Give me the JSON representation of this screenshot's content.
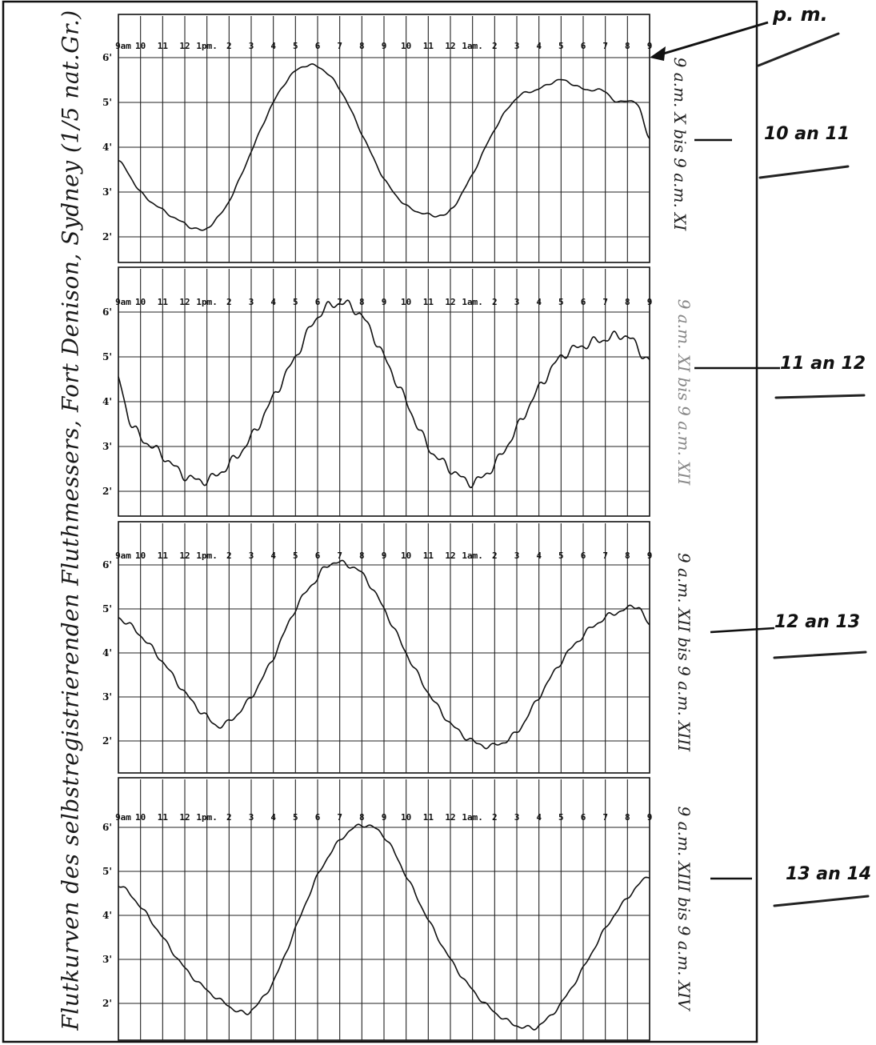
{
  "page": {
    "title": "Flutkurven des selbstregistrierenden Fluthmessers, Fort Denison, Sydney (1/5 nat.Gr.)",
    "pm_note": "p. m."
  },
  "chart_data": [
    {
      "type": "line",
      "range_label": "9 a.m. X bis 9 a.m. XI",
      "side_note": "10 an 11",
      "top_labels": [
        "9am",
        "10",
        "11",
        "12",
        "1pm.",
        "2",
        "3",
        "4",
        "5",
        "6",
        "7",
        "8",
        "9",
        "10",
        "11",
        "12",
        "1am.",
        "2",
        "3",
        "4",
        "5",
        "6",
        "7",
        "8",
        "9"
      ],
      "yticks": [
        "2'",
        "3'",
        "4'",
        "5'",
        "6'"
      ],
      "ylim": [
        1.5,
        6.2
      ],
      "xlim": [
        0,
        24
      ],
      "series": [
        {
          "x": [
            0,
            1,
            2,
            3,
            3.5,
            4,
            5,
            6,
            7,
            8,
            9,
            10,
            11,
            12,
            13,
            14,
            14.5,
            15,
            16,
            17,
            18,
            19,
            20,
            21,
            22,
            22.5,
            23,
            23.5,
            24
          ],
          "y": [
            3.7,
            3.0,
            2.6,
            2.3,
            2.18,
            2.2,
            2.8,
            3.9,
            5.0,
            5.7,
            5.8,
            5.3,
            4.3,
            3.3,
            2.7,
            2.5,
            2.48,
            2.6,
            3.4,
            4.4,
            5.1,
            5.3,
            5.5,
            5.3,
            5.25,
            5.0,
            5.05,
            4.9,
            4.2
          ]
        }
      ]
    },
    {
      "type": "line",
      "range_label": "9 a.m. XI bis 9 a.m. XII",
      "side_note": "11 an 12",
      "top_labels": [
        "9am",
        "10",
        "11",
        "12",
        "1pm.",
        "2",
        "3",
        "4",
        "5",
        "6",
        "7",
        "8",
        "9",
        "10",
        "11",
        "12",
        "1am.",
        "2",
        "3",
        "4",
        "5",
        "6",
        "7",
        "8",
        "9"
      ],
      "yticks": [
        "2'",
        "3'",
        "4'",
        "5'",
        "6'"
      ],
      "ylim": [
        1.5,
        6.4
      ],
      "xlim": [
        0,
        24
      ],
      "series": [
        {
          "x": [
            0,
            0.5,
            1,
            2,
            3,
            4,
            5,
            6,
            7,
            8,
            9,
            10,
            11,
            12,
            13,
            14,
            15,
            16,
            17,
            18,
            19,
            20,
            21,
            22,
            23,
            24
          ],
          "y": [
            4.5,
            3.6,
            3.2,
            2.8,
            2.35,
            2.25,
            2.6,
            3.2,
            4.1,
            5.0,
            5.9,
            6.2,
            5.9,
            5.0,
            4.0,
            3.0,
            2.5,
            2.2,
            2.6,
            3.4,
            4.3,
            5.0,
            5.25,
            5.4,
            5.45,
            4.9
          ]
        }
      ]
    },
    {
      "type": "line",
      "range_label": "9 a.m. XII bis 9 a.m. XIII",
      "side_note": "12 an 13",
      "top_labels": [
        "9am",
        "10",
        "11",
        "12",
        "1pm.",
        "2",
        "3",
        "4",
        "5",
        "6",
        "7",
        "8",
        "9",
        "10",
        "11",
        "12",
        "1am.",
        "2",
        "3",
        "4",
        "5",
        "6",
        "7",
        "8",
        "9"
      ],
      "yticks": [
        "2'",
        "3'",
        "4'",
        "5'",
        "6'"
      ],
      "ylim": [
        1.5,
        6.3
      ],
      "xlim": [
        0,
        24
      ],
      "series": [
        {
          "x": [
            0,
            1,
            2,
            3,
            4,
            4.5,
            5,
            6,
            7,
            8,
            9,
            9.5,
            10,
            11,
            12,
            13,
            14,
            15,
            16,
            16.5,
            17,
            18,
            19,
            20,
            21,
            22,
            23,
            23.5,
            24
          ],
          "y": [
            4.8,
            4.4,
            3.8,
            3.1,
            2.55,
            2.35,
            2.45,
            3.0,
            3.9,
            5.0,
            5.7,
            6.0,
            6.05,
            5.8,
            5.0,
            4.0,
            3.1,
            2.4,
            2.0,
            1.9,
            1.9,
            2.2,
            3.0,
            3.8,
            4.4,
            4.8,
            5.0,
            5.05,
            4.6
          ]
        }
      ]
    },
    {
      "type": "line",
      "range_label": "9 a.m. XIII bis 9 a.m. XIV",
      "side_note": "13 an 14",
      "top_labels": [
        "9am",
        "10",
        "11",
        "12",
        "1pm.",
        "2",
        "3",
        "4",
        "5",
        "6",
        "7",
        "8",
        "9",
        "10",
        "11",
        "12",
        "1am.",
        "2",
        "3",
        "4",
        "5",
        "6",
        "7",
        "8",
        "9"
      ],
      "yticks": [
        "2'",
        "3'",
        "4'",
        "5'",
        "6'"
      ],
      "ylim": [
        1.2,
        6.2
      ],
      "xlim": [
        0,
        24
      ],
      "series": [
        {
          "x": [
            0,
            1,
            2,
            3,
            4,
            5,
            5.5,
            6,
            7,
            8,
            9,
            10,
            11,
            12,
            13,
            14,
            15,
            16,
            17,
            18,
            18.5,
            19,
            20,
            21,
            22,
            23,
            24
          ],
          "y": [
            4.7,
            4.2,
            3.5,
            2.8,
            2.3,
            1.95,
            1.8,
            1.85,
            2.5,
            3.7,
            4.9,
            5.7,
            6.05,
            5.8,
            4.9,
            3.9,
            3.0,
            2.3,
            1.8,
            1.5,
            1.45,
            1.5,
            2.0,
            2.8,
            3.7,
            4.4,
            4.9
          ]
        }
      ]
    }
  ]
}
